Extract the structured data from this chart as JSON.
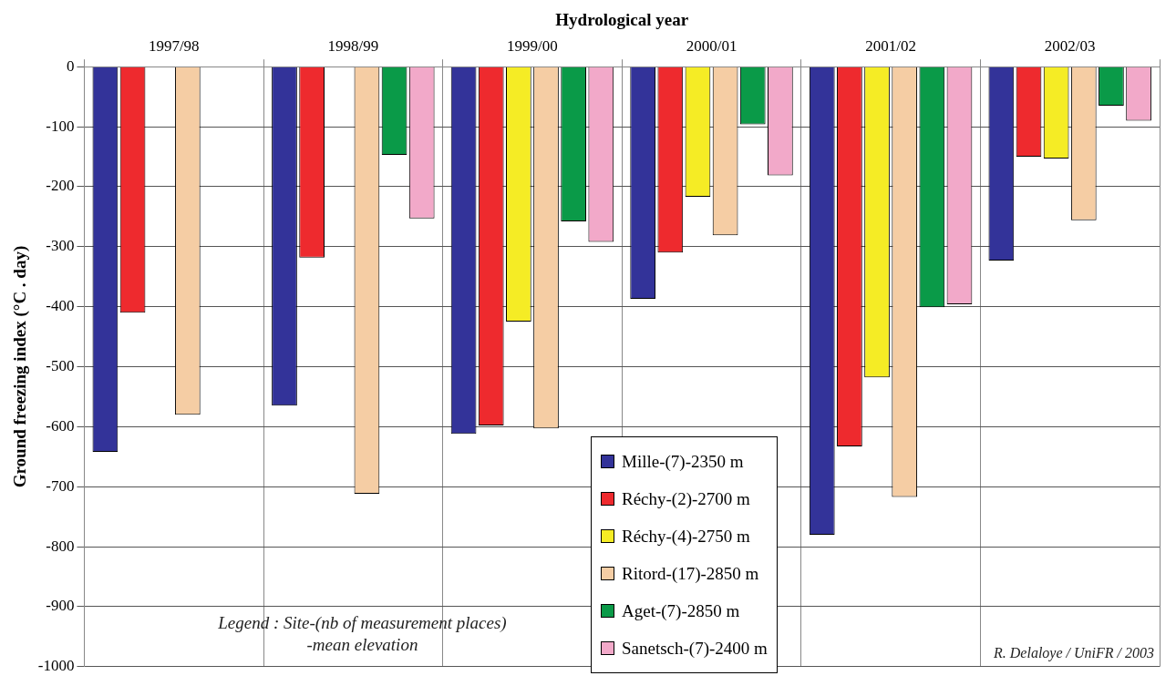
{
  "chart_data": {
    "type": "bar",
    "xlabel": "Hydrological year",
    "ylabel": "Ground freezing index (°C . day)",
    "categories": [
      "1997/98",
      "1998/99",
      "1999/00",
      "2000/01",
      "2001/02",
      "2002/03"
    ],
    "series": [
      {
        "name": "Mille-(7)-2350 m",
        "color": "#333399",
        "values": [
          -642,
          -565,
          -612,
          -387,
          -780,
          -323
        ]
      },
      {
        "name": "Réchy-(2)-2700 m",
        "color": "#ee2a2e",
        "values": [
          -410,
          -318,
          -598,
          -310,
          -633,
          -150
        ]
      },
      {
        "name": "Réchy-(4)-2750 m",
        "color": "#f5ec25",
        "values": [
          null,
          null,
          -425,
          -217,
          -518,
          -153
        ]
      },
      {
        "name": "Ritord-(17)-2850 m",
        "color": "#f5cda4",
        "values": [
          -580,
          -712,
          -603,
          -281,
          -717,
          -256
        ]
      },
      {
        "name": "Aget-(7)-2850 m",
        "color": "#0a9a48",
        "values": [
          null,
          -147,
          -258,
          -96,
          -401,
          -65
        ]
      },
      {
        "name": "Sanetsch-(7)-2400 m",
        "color": "#f2a9c9",
        "values": [
          null,
          -253,
          -292,
          -181,
          -396,
          -90
        ]
      }
    ],
    "ylim": [
      -1000,
      0
    ],
    "yticks": [
      -1000,
      -900,
      -800,
      -700,
      -600,
      -500,
      -400,
      -300,
      -200,
      -100,
      0
    ],
    "grid": true,
    "legend": "bottom",
    "annotations": [
      "Legend : Site-(nb of measurement places)\n-mean elevation",
      "R. Delaloye / UniFR / 2003"
    ]
  }
}
